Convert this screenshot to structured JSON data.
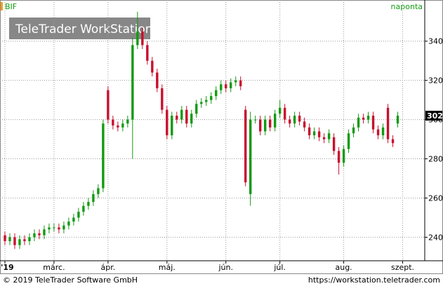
{
  "chart_data": {
    "type": "candlestick",
    "symbol": "BIF",
    "period": "naponta",
    "watermark": "TeleTrader WorkStation",
    "footer_left": "© 2019 TeleTrader Software GmbH",
    "footer_right": "https://workstation.teletrader.com",
    "up_color": "#139a13",
    "down_color": "#c8102e",
    "xlim": [
      -1,
      85.5
    ],
    "ylim": [
      228,
      361
    ],
    "yticks": [
      240,
      260,
      280,
      300,
      320,
      340
    ],
    "xticks": [
      {
        "value": 0,
        "label": "'19"
      },
      {
        "value": 10,
        "label": "márc."
      },
      {
        "value": 21,
        "label": "ápr."
      },
      {
        "value": 33,
        "label": "máj."
      },
      {
        "value": 45,
        "label": "jún."
      },
      {
        "value": 56,
        "label": "júl."
      },
      {
        "value": 69,
        "label": "aug."
      },
      {
        "value": 81,
        "label": "szept."
      }
    ],
    "open": [
      241,
      238,
      240,
      236,
      239,
      238,
      240,
      242,
      241,
      244,
      245,
      245,
      244,
      246,
      248,
      250,
      253,
      256,
      258,
      262,
      265,
      315,
      300,
      297,
      296,
      298,
      300,
      338,
      345,
      338,
      330,
      324,
      316,
      305,
      292,
      302,
      300,
      305,
      298,
      303,
      308,
      309,
      310,
      312,
      315,
      318,
      316,
      319,
      320,
      305,
      262,
      300,
      300,
      294,
      300,
      296,
      303,
      306,
      300,
      298,
      302,
      299,
      296,
      292,
      294,
      291,
      290,
      291,
      284,
      278,
      285,
      293,
      296,
      301,
      300,
      302,
      295,
      292,
      306,
      290,
      298
    ],
    "high": [
      243,
      242,
      242,
      241,
      241,
      242,
      244,
      244,
      246,
      247,
      247,
      247,
      248,
      250,
      252,
      255,
      258,
      260,
      264,
      267,
      300,
      317,
      302,
      299,
      300,
      302,
      342,
      355,
      347,
      340,
      332,
      326,
      318,
      307,
      304,
      304,
      307,
      307,
      305,
      310,
      311,
      312,
      314,
      317,
      320,
      320,
      321,
      322,
      322,
      307,
      304,
      302,
      302,
      302,
      302,
      305,
      310,
      308,
      302,
      304,
      304,
      301,
      298,
      296,
      296,
      293,
      295,
      293,
      286,
      287,
      295,
      298,
      303,
      303,
      304,
      304,
      297,
      298,
      308,
      292,
      304
    ],
    "low": [
      236,
      236,
      234,
      234,
      236,
      236,
      238,
      239,
      239,
      242,
      243,
      242,
      242,
      244,
      246,
      248,
      251,
      254,
      256,
      260,
      263,
      298,
      295,
      294,
      294,
      296,
      280,
      336,
      336,
      328,
      322,
      314,
      303,
      290,
      290,
      298,
      298,
      296,
      296,
      301,
      306,
      307,
      308,
      310,
      313,
      314,
      314,
      317,
      315,
      266,
      256,
      298,
      292,
      292,
      294,
      294,
      301,
      298,
      296,
      296,
      297,
      294,
      290,
      290,
      289,
      288,
      288,
      282,
      272,
      276,
      283,
      291,
      294,
      298,
      298,
      293,
      290,
      290,
      288,
      286,
      296
    ],
    "close": [
      238,
      240,
      236,
      239,
      238,
      240,
      242,
      241,
      244,
      245,
      245,
      244,
      246,
      248,
      250,
      253,
      256,
      258,
      262,
      265,
      298,
      300,
      297,
      296,
      298,
      300,
      338,
      345,
      338,
      330,
      324,
      316,
      305,
      292,
      302,
      300,
      305,
      298,
      303,
      308,
      309,
      310,
      312,
      315,
      318,
      316,
      319,
      320,
      317,
      268,
      300,
      300,
      294,
      300,
      296,
      303,
      306,
      300,
      298,
      302,
      299,
      296,
      292,
      294,
      291,
      290,
      293,
      284,
      278,
      285,
      293,
      296,
      301,
      300,
      302,
      295,
      292,
      296,
      290,
      288,
      302
    ]
  }
}
